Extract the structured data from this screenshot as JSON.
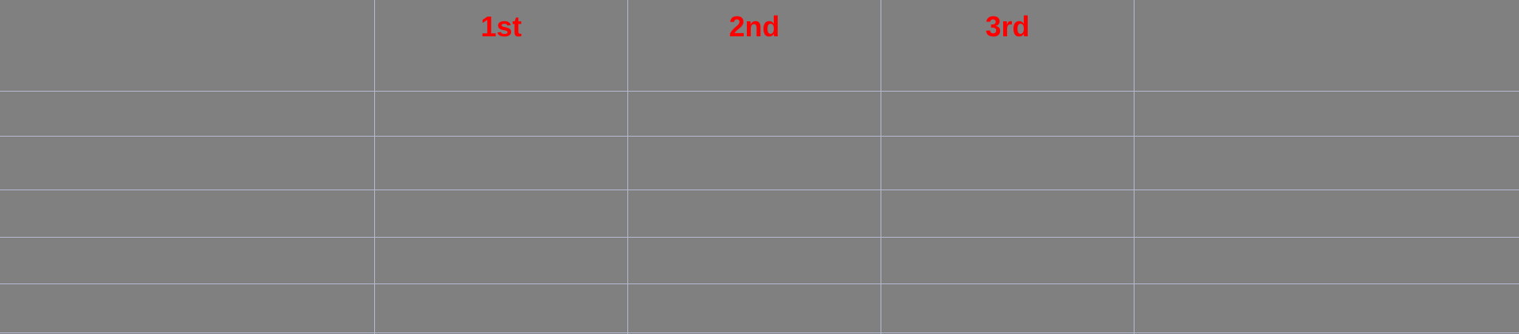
{
  "columns": {
    "headers": [
      "",
      "1st",
      "2nd",
      "3rd",
      ""
    ]
  },
  "rows": {
    "count_label": "",
    "items": [
      "",
      "",
      "",
      "",
      ""
    ]
  },
  "colors": {
    "background": "#808080",
    "grid_line": "#b4b8d0",
    "header_text": "#ff0000"
  }
}
